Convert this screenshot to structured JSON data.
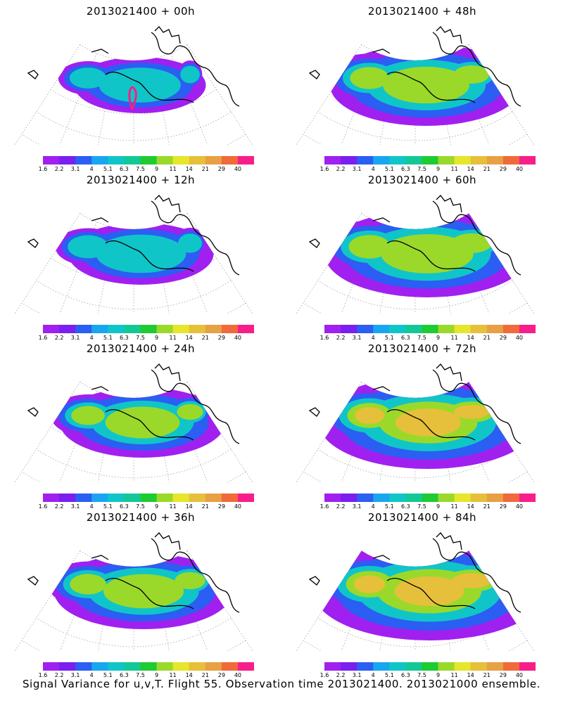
{
  "panels": [
    {
      "title": "2013021400 + 00h",
      "spread": 0.25,
      "has_flight_track": true
    },
    {
      "title": "2013021400 + 48h",
      "spread": 0.7,
      "has_flight_track": false
    },
    {
      "title": "2013021400 + 12h",
      "spread": 0.35,
      "has_flight_track": false
    },
    {
      "title": "2013021400 + 60h",
      "spread": 0.8,
      "has_flight_track": false
    },
    {
      "title": "2013021400 + 24h",
      "spread": 0.5,
      "has_flight_track": false
    },
    {
      "title": "2013021400 + 72h",
      "spread": 0.9,
      "has_flight_track": false
    },
    {
      "title": "2013021400 + 36h",
      "spread": 0.6,
      "has_flight_track": false
    },
    {
      "title": "2013021400 + 84h",
      "spread": 1.0,
      "has_flight_track": false
    }
  ],
  "colorbar": {
    "labels": [
      "1.6",
      "2.2",
      "3.1",
      "4",
      "5.1",
      "6.3",
      "7.5",
      "9",
      "11",
      "14",
      "21",
      "29",
      "40"
    ],
    "colors": [
      "#a020f0",
      "#7a1ff0",
      "#2b5ef2",
      "#19a6f0",
      "#10c5c8",
      "#14c896",
      "#1ecb32",
      "#9ad92a",
      "#e6e62a",
      "#e6c03a",
      "#e8a044",
      "#f06a3a",
      "#f81e8a"
    ]
  },
  "caption": "Signal Variance for u,v,T. Flight 55. Observation time 2013021400. 2013021000 ensemble."
}
